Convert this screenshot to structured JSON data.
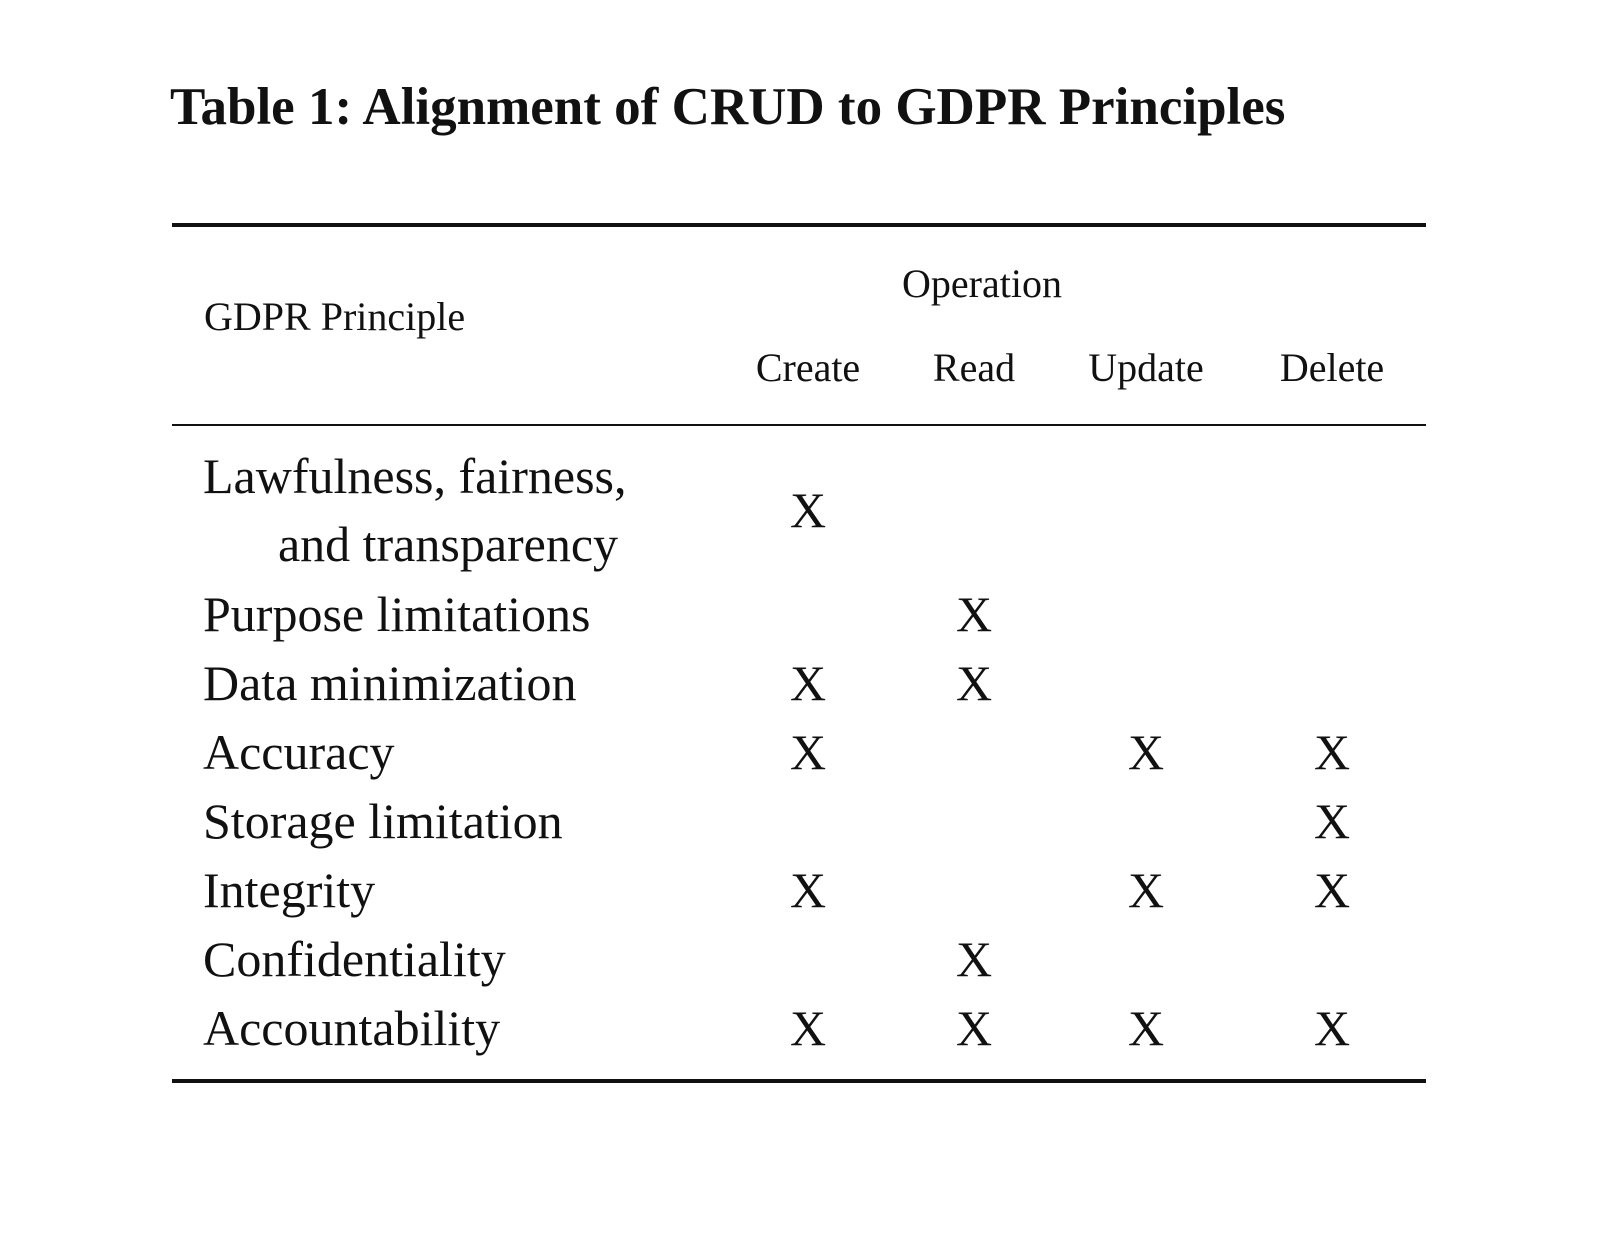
{
  "caption": "Table 1: Alignment of CRUD to GDPR Principles",
  "header": {
    "principle": "GDPR Principle",
    "operation": "Operation",
    "columns": [
      "Create",
      "Read",
      "Update",
      "Delete"
    ]
  },
  "rows": [
    {
      "principle_line1": "Lawfulness, fairness,",
      "principle_line2": "and transparency",
      "create": "X",
      "read": "",
      "update": "",
      "delete": ""
    },
    {
      "principle": "Purpose limitations",
      "create": "",
      "read": "X",
      "update": "",
      "delete": ""
    },
    {
      "principle": "Data minimization",
      "create": "X",
      "read": "X",
      "update": "",
      "delete": ""
    },
    {
      "principle": "Accuracy",
      "create": "X",
      "read": "",
      "update": "X",
      "delete": "X"
    },
    {
      "principle": "Storage limitation",
      "create": "",
      "read": "",
      "update": "",
      "delete": "X"
    },
    {
      "principle": "Integrity",
      "create": "X",
      "read": "",
      "update": "X",
      "delete": "X"
    },
    {
      "principle": "Confidentiality",
      "create": "",
      "read": "X",
      "update": "",
      "delete": ""
    },
    {
      "principle": "Accountability",
      "create": "X",
      "read": "X",
      "update": "X",
      "delete": "X"
    }
  ]
}
